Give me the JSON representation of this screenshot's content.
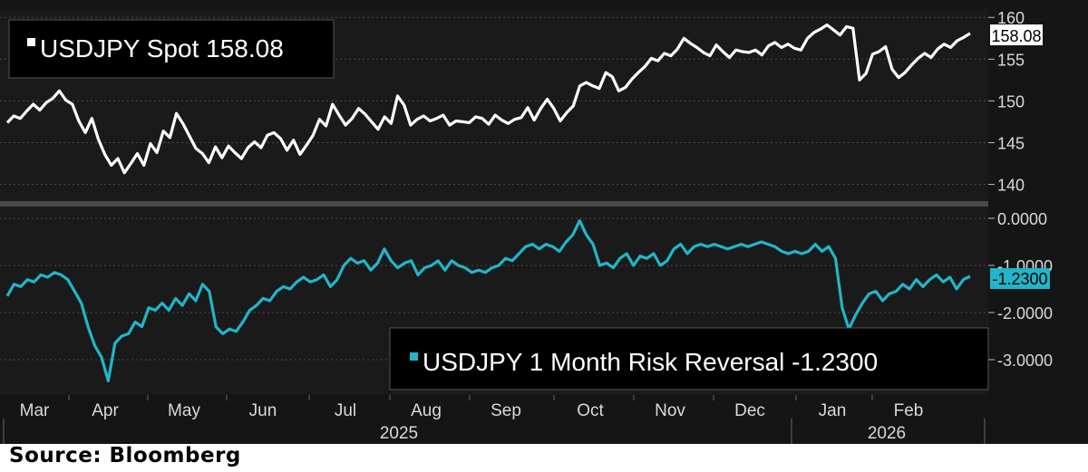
{
  "source": "Source: Bloomberg",
  "colors": {
    "background": "#151515",
    "panel": "#1a1a1a",
    "spot": "#ffffff",
    "rr": "#22b5c8",
    "axis_text": "#d9d9d9",
    "grid": "#4a4a4a",
    "label_bg": "#000000"
  },
  "chart_data": [
    {
      "type": "line",
      "title": "USDJPY Spot 158.08",
      "legend": "top-left",
      "series": [
        {
          "name": "USDJPY Spot",
          "last_label": "158.08",
          "values": [
            147.4,
            148.2,
            147.9,
            148.8,
            149.6,
            148.9,
            149.8,
            150.3,
            151.2,
            150.1,
            149.6,
            147.6,
            146.2,
            147.9,
            145.4,
            143.6,
            142.3,
            143.1,
            141.4,
            142.5,
            143.7,
            142.3,
            144.9,
            143.8,
            146.4,
            145.6,
            148.5,
            147.3,
            145.8,
            144.3,
            143.7,
            142.6,
            144.5,
            143.2,
            144.6,
            143.8,
            143.1,
            144.4,
            145.1,
            144.4,
            145.9,
            146.2,
            145.5,
            144.1,
            145.3,
            143.6,
            144.7,
            145.9,
            147.8,
            147.0,
            149.6,
            148.3,
            147.1,
            147.9,
            149.1,
            148.4,
            147.5,
            146.6,
            148.1,
            147.3,
            150.6,
            149.5,
            147.1,
            147.8,
            148.2,
            147.6,
            147.9,
            148.3,
            147.1,
            147.6,
            147.5,
            147.4,
            148.1,
            147.9,
            147.2,
            148.3,
            147.7,
            147.3,
            147.8,
            148.0,
            149.2,
            147.7,
            149.1,
            150.2,
            149.1,
            147.6,
            148.6,
            149.4,
            151.8,
            152.2,
            151.8,
            151.5,
            153.4,
            152.9,
            151.2,
            151.6,
            152.6,
            153.4,
            154.1,
            155.1,
            154.8,
            155.7,
            155.4,
            156.2,
            157.5,
            156.9,
            156.4,
            155.8,
            155.4,
            156.7,
            155.9,
            155.2,
            156.1,
            155.9,
            155.8,
            156.1,
            155.5,
            156.6,
            157.0,
            156.4,
            156.8,
            156.3,
            156.1,
            157.5,
            158.2,
            158.6,
            159.1,
            158.5,
            157.9,
            158.9,
            158.7,
            152.5,
            153.3,
            155.6,
            155.9,
            156.5,
            153.8,
            152.8,
            153.4,
            154.3,
            155.1,
            155.7,
            155.2,
            156.2,
            156.8,
            156.4,
            157.2,
            157.6,
            158.08
          ]
        }
      ],
      "ylim": [
        138,
        161
      ],
      "yticks": [
        "140",
        "145",
        "150",
        "155",
        "160"
      ]
    },
    {
      "type": "line",
      "title": "USDJPY 1 Month Risk Reversal -1.2300",
      "legend": "bottom-right",
      "series": [
        {
          "name": "USDJPY 1 Month Risk Reversal",
          "last_label": "-1.2300",
          "values": [
            -1.65,
            -1.4,
            -1.45,
            -1.3,
            -1.35,
            -1.2,
            -1.25,
            -1.15,
            -1.2,
            -1.3,
            -1.55,
            -1.8,
            -2.3,
            -2.7,
            -2.95,
            -3.45,
            -2.65,
            -2.5,
            -2.45,
            -2.2,
            -2.3,
            -1.9,
            -1.95,
            -1.8,
            -1.95,
            -1.7,
            -1.85,
            -1.6,
            -1.75,
            -1.4,
            -1.55,
            -2.3,
            -2.45,
            -2.35,
            -2.4,
            -2.2,
            -1.95,
            -1.85,
            -1.7,
            -1.75,
            -1.55,
            -1.45,
            -1.5,
            -1.35,
            -1.25,
            -1.35,
            -1.3,
            -1.2,
            -1.45,
            -1.3,
            -1.0,
            -0.85,
            -0.95,
            -0.9,
            -1.1,
            -0.95,
            -0.65,
            -0.9,
            -1.05,
            -0.95,
            -0.9,
            -1.2,
            -1.05,
            -1.0,
            -0.9,
            -1.1,
            -0.9,
            -1.0,
            -1.05,
            -1.15,
            -1.1,
            -1.15,
            -1.05,
            -1.0,
            -0.85,
            -0.9,
            -0.75,
            -0.6,
            -0.55,
            -0.65,
            -0.55,
            -0.6,
            -0.7,
            -0.5,
            -0.35,
            -0.05,
            -0.35,
            -0.55,
            -1.0,
            -0.95,
            -1.05,
            -0.85,
            -0.75,
            -1.0,
            -0.8,
            -0.85,
            -0.75,
            -1.0,
            -0.9,
            -0.65,
            -0.55,
            -0.75,
            -0.6,
            -0.55,
            -0.6,
            -0.55,
            -0.6,
            -0.65,
            -0.6,
            -0.55,
            -0.6,
            -0.55,
            -0.5,
            -0.55,
            -0.6,
            -0.7,
            -0.75,
            -0.7,
            -0.75,
            -0.7,
            -0.55,
            -0.7,
            -0.6,
            -0.85,
            -1.9,
            -2.35,
            -2.05,
            -1.8,
            -1.6,
            -1.55,
            -1.75,
            -1.6,
            -1.55,
            -1.4,
            -1.5,
            -1.3,
            -1.45,
            -1.3,
            -1.2,
            -1.35,
            -1.25,
            -1.5,
            -1.3,
            -1.23
          ]
        }
      ],
      "ylim": [
        -3.75,
        0.25
      ],
      "yticks": [
        "0.0000",
        "-1.0000",
        "-2.0000",
        "-3.0000"
      ]
    }
  ],
  "x_axis": {
    "months": [
      "Mar",
      "Apr",
      "May",
      "Jun",
      "Jul",
      "Aug",
      "Sep",
      "Oct",
      "Nov",
      "Dec",
      "Jan",
      "Feb"
    ],
    "years": [
      "2025",
      "2026"
    ]
  }
}
